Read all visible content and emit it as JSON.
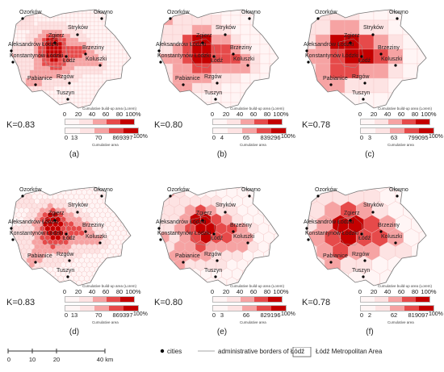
{
  "cities": [
    "Ozorków",
    "Głowno",
    "Stryków",
    "Zgierz",
    "Aleksandrów Łódzki",
    "Konstantynów Łódzki",
    "Łódź",
    "Brzeziny",
    "Koluszki",
    "Pabianice",
    "Rzgów",
    "Tuszyn"
  ],
  "legend": {
    "built_title": "Cumulative build-up area (Lorem)",
    "area_title": "Cumulative area",
    "pct_label": "100%",
    "built_ticks": [
      "0",
      "20",
      "40",
      "60",
      "80",
      "100%"
    ]
  },
  "panels": [
    {
      "caption": "(a)",
      "k": "K=0.83",
      "area_ticks": [
        "0",
        "13",
        "70",
        "869397"
      ]
    },
    {
      "caption": "(b)",
      "k": "K=0.80",
      "area_ticks": [
        "0",
        "4",
        "65",
        "839296"
      ]
    },
    {
      "caption": "(c)",
      "k": "K=0.78",
      "area_ticks": [
        "0",
        "3",
        "63",
        "799095"
      ]
    },
    {
      "caption": "(d)",
      "k": "K=0.83",
      "area_ticks": [
        "0",
        "13",
        "70",
        "869397"
      ]
    },
    {
      "caption": "(e)",
      "k": "K=0.80",
      "area_ticks": [
        "0",
        "3",
        "66",
        "829196"
      ]
    },
    {
      "caption": "(f)",
      "k": "K=0.78",
      "area_ticks": [
        "0",
        "2",
        "62",
        "819097"
      ]
    }
  ],
  "footer": {
    "scale_ticks": [
      "0",
      "10",
      "20",
      "40 km"
    ],
    "cities_label": "cities",
    "borders_label": "administrative borders of Łódź",
    "metro_label": "Łódź Metropolitan Area"
  },
  "colors": {
    "light": "#fde3e3",
    "mid": "#f6a3a3",
    "strong": "#e64a4a",
    "dark": "#c40000",
    "border": "#888888"
  }
}
